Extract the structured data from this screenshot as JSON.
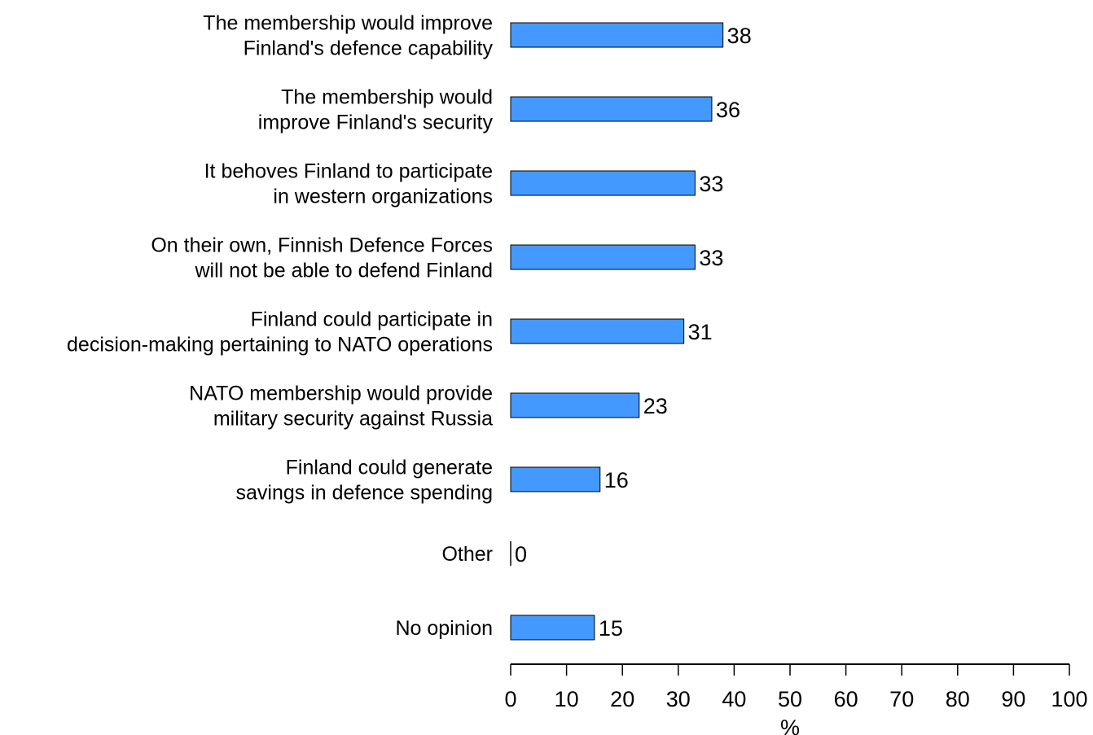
{
  "chart_data": {
    "type": "bar",
    "orientation": "horizontal",
    "categories": [
      [
        "The membership would improve",
        "Finland's defence capability"
      ],
      [
        "The membership would",
        "improve Finland's security"
      ],
      [
        "It behoves Finland to participate",
        "in western organizations"
      ],
      [
        "On their own, Finnish Defence Forces",
        "will not be able to defend Finland"
      ],
      [
        "Finland could participate in",
        "decision-making pertaining to NATO operations"
      ],
      [
        "NATO membership would provide",
        "military security against Russia"
      ],
      [
        "Finland could generate",
        "savings in defence spending"
      ],
      [
        "Other"
      ],
      [
        "No opinion"
      ]
    ],
    "values": [
      38,
      36,
      33,
      33,
      31,
      23,
      16,
      0,
      15
    ],
    "value_labels": [
      "38",
      "36",
      "33",
      "33",
      "31",
      "23",
      "16",
      "0",
      "15"
    ],
    "xlim": [
      0,
      100
    ],
    "xticks": [
      0,
      10,
      20,
      30,
      40,
      50,
      60,
      70,
      80,
      90,
      100
    ],
    "xlabel": "%",
    "title": "",
    "bar_color": "#4499ff",
    "bar_edge_color": "#000000",
    "grid": false
  }
}
